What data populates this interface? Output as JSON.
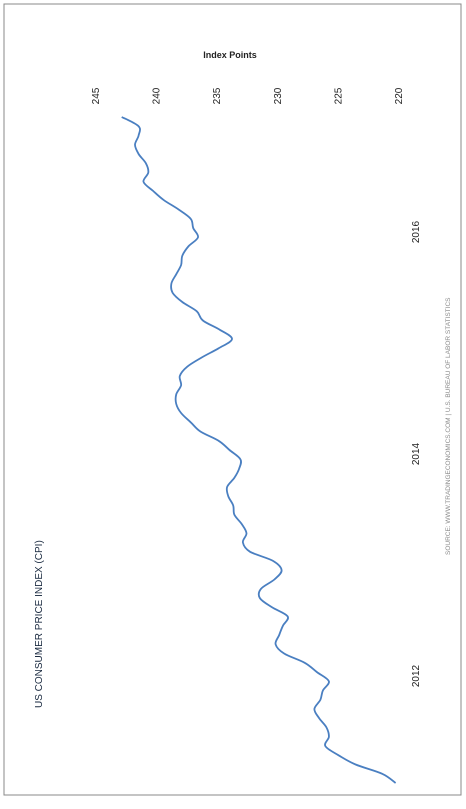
{
  "chart_data": {
    "type": "line",
    "title": "US CONSUMER PRICE INDEX (CPI)",
    "ylabel": "Index Points",
    "xlabel": "",
    "source": "SOURCE: WWW.TRADINGECONOMICS.COM | U.S. BUREAU OF LABOR STATISTICS",
    "x_ticks": [
      "2012",
      "2014",
      "2016"
    ],
    "y_ticks": [
      220,
      225,
      230,
      235,
      240,
      245
    ],
    "ylim": [
      220,
      246
    ],
    "x_range": [
      "2011-01",
      "2017-01"
    ],
    "grid": false,
    "legend": "none",
    "line_color": "#4a7fc1",
    "series": [
      {
        "x": [
          "2011-01",
          "2011-02",
          "2011-03",
          "2011-04",
          "2011-05",
          "2011-06",
          "2011-07",
          "2011-08",
          "2011-09",
          "2011-10",
          "2011-11",
          "2011-12",
          "2012-01",
          "2012-02",
          "2012-03",
          "2012-04",
          "2012-05",
          "2012-06",
          "2012-07",
          "2012-08",
          "2012-09",
          "2012-10",
          "2012-11",
          "2012-12",
          "2013-01",
          "2013-02",
          "2013-03",
          "2013-04",
          "2013-05",
          "2013-06",
          "2013-07",
          "2013-08",
          "2013-09",
          "2013-10",
          "2013-11",
          "2013-12",
          "2014-01",
          "2014-02",
          "2014-03",
          "2014-04",
          "2014-05",
          "2014-06",
          "2014-07",
          "2014-08",
          "2014-09",
          "2014-10",
          "2014-11",
          "2014-12",
          "2015-01",
          "2015-02",
          "2015-03",
          "2015-04",
          "2015-05",
          "2015-06",
          "2015-07",
          "2015-08",
          "2015-09",
          "2015-10",
          "2015-11",
          "2015-12",
          "2016-01",
          "2016-02",
          "2016-03",
          "2016-04",
          "2016-05",
          "2016-06",
          "2016-07",
          "2016-08",
          "2016-09",
          "2016-10",
          "2016-11",
          "2016-12",
          "2017-01"
        ],
        "values": [
          220.2,
          221.3,
          223.5,
          224.9,
          226.0,
          225.7,
          225.9,
          226.5,
          226.9,
          226.4,
          226.2,
          225.7,
          226.7,
          227.7,
          229.4,
          230.1,
          229.8,
          229.5,
          229.1,
          230.4,
          231.4,
          231.3,
          230.2,
          229.6,
          230.3,
          232.2,
          232.8,
          232.5,
          232.9,
          233.5,
          233.6,
          234.0,
          234.1,
          233.5,
          233.1,
          233.0,
          233.9,
          234.8,
          236.3,
          237.1,
          237.9,
          238.3,
          238.3,
          237.9,
          238.0,
          237.4,
          236.2,
          234.8,
          233.7,
          234.7,
          236.1,
          236.6,
          237.8,
          238.6,
          238.7,
          238.3,
          237.9,
          237.8,
          237.3,
          236.5,
          236.9,
          237.1,
          238.1,
          239.3,
          240.2,
          241.0,
          240.6,
          240.8,
          241.4,
          241.7,
          241.4,
          241.4,
          242.8
        ]
      }
    ]
  }
}
